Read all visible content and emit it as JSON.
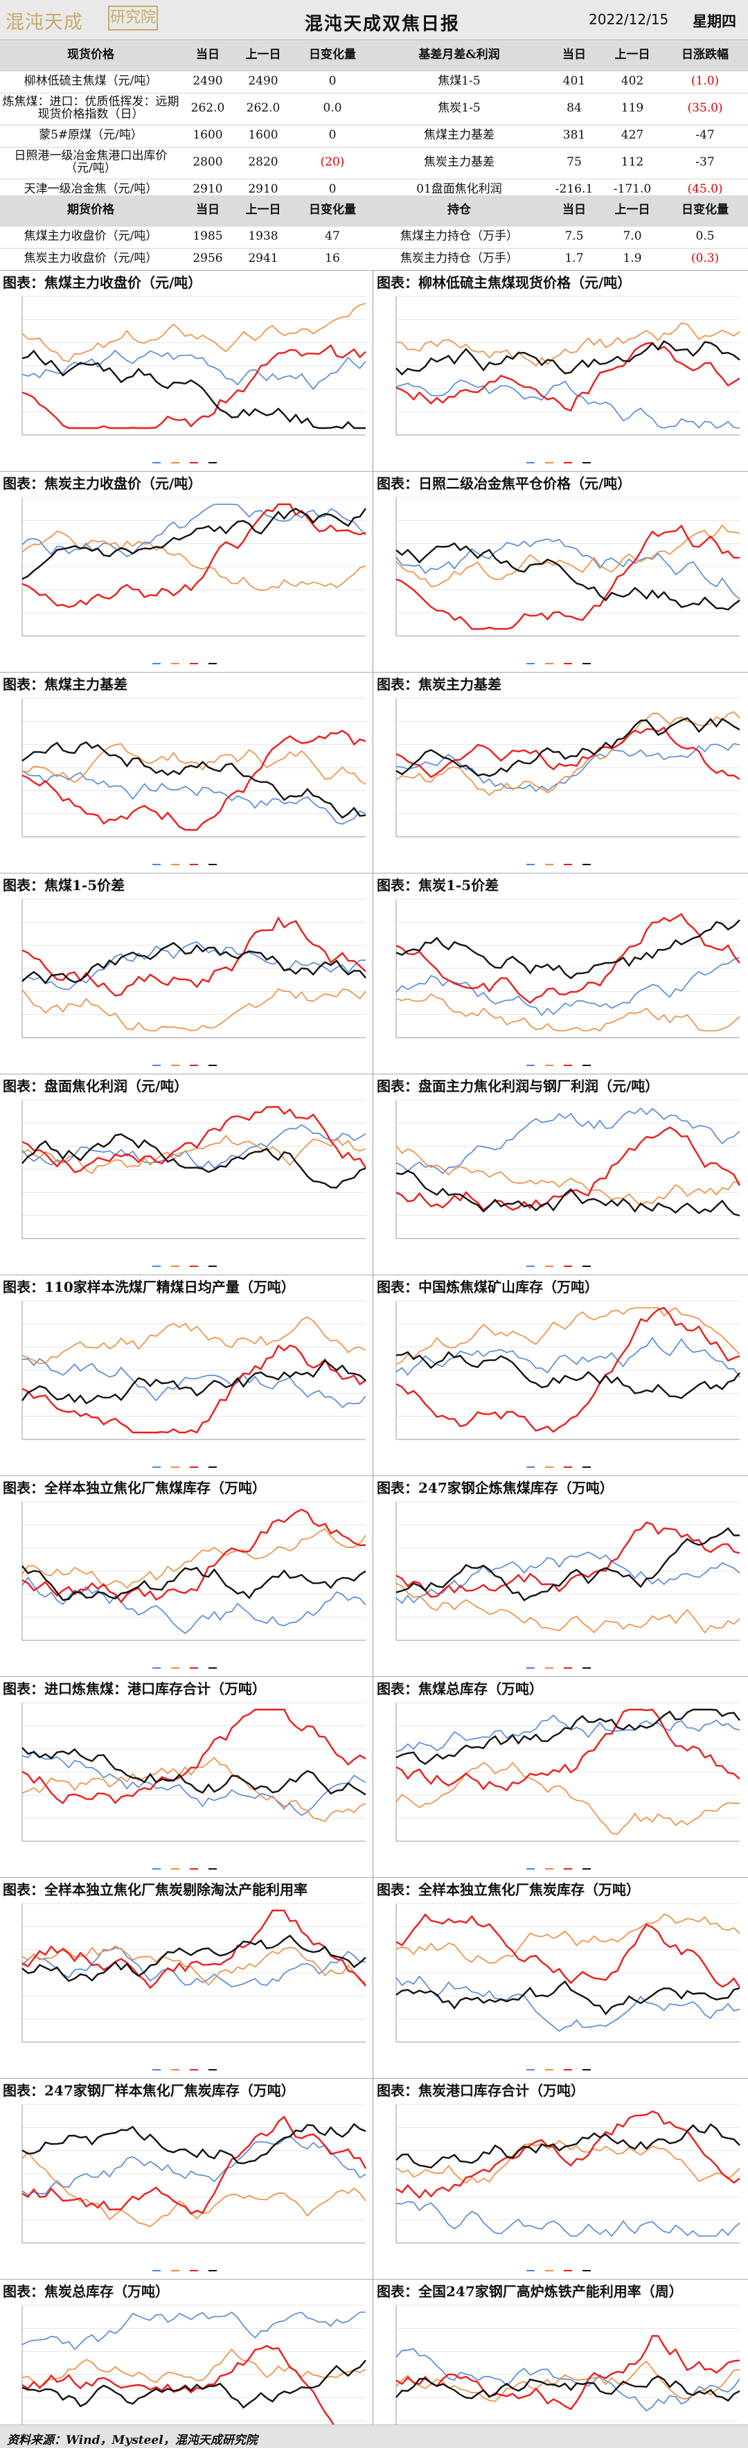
{
  "header": {
    "logo_text": "混沌天成",
    "logo_box": "研究院",
    "title": "混沌天成双焦日报",
    "date": "2022/12/15",
    "weekday": "星期四"
  },
  "spot_table": {
    "headers": [
      "现货价格",
      "当日",
      "上一日",
      "日变化量",
      "基差月差&利润",
      "当日",
      "上一日",
      "日涨跌幅"
    ],
    "rows": [
      [
        "柳林低硫主焦煤（元/吨）",
        "2490",
        "2490",
        "0",
        "焦煤1-5",
        "401",
        "402",
        "(1.0)"
      ],
      [
        "炼焦煤：进口：优质低挥发：远期现货价格指数（日）",
        "262.0",
        "262.0",
        "0.0",
        "焦炭1-5",
        "84",
        "119",
        "(35.0)"
      ],
      [
        "蒙5#原煤（元/吨）",
        "1600",
        "1600",
        "0",
        "焦煤主力基差",
        "381",
        "427",
        "-47"
      ],
      [
        "日照港一级冶金焦港口出库价（元/吨）",
        "2800",
        "2820",
        "(20)",
        "焦炭主力基差",
        "75",
        "112",
        "-37"
      ],
      [
        "天津一级冶金焦（元/吨）",
        "2910",
        "2910",
        "0",
        "01盘面焦化利润",
        "-216.1",
        "-171.0",
        "(45.0)"
      ]
    ]
  },
  "futures_table": {
    "headers": [
      "期货价格",
      "当日",
      "上一日",
      "日变化量",
      "持仓",
      "当日",
      "上一日",
      "日变化量"
    ],
    "rows": [
      [
        "焦煤主力收盘价（元/吨）",
        "1985",
        "1938",
        "47",
        "焦煤主力持仓（万手）",
        "7.5",
        "7.0",
        "0.5"
      ],
      [
        "焦炭主力收盘价（元/吨）",
        "2956",
        "2941",
        "16",
        "焦炭主力持仓（万手）",
        "1.7",
        "1.9",
        "(0.3)"
      ]
    ]
  },
  "colors": {
    "y2019": "#4f86d9",
    "y2020": "#f08a3a",
    "y2021": "#ee1c1c",
    "y2022": "#111111",
    "purple": "#7030a0",
    "negative": "#e00000"
  },
  "charts": [
    {
      "title": "图表：焦煤主力收盘价（元/吨）"
    },
    {
      "title": "图表：柳林低硫主焦煤现货价格（元/吨）"
    },
    {
      "title": "图表：焦炭主力收盘价（元/吨）"
    },
    {
      "title": "图表：日照二级冶金焦平仓价格（元/吨）"
    },
    {
      "title": "图表：焦煤主力基差"
    },
    {
      "title": "图表：焦炭主力基差"
    },
    {
      "title": "图表：焦煤1-5价差"
    },
    {
      "title": "图表：焦炭1-5价差"
    },
    {
      "title": "图表：盘面焦化利润（元/吨）"
    },
    {
      "title": "图表：盘面主力焦化利润与钢厂利润（元/吨）"
    },
    {
      "title": "图表：110家样本洗煤厂精煤日均产量（万吨）"
    },
    {
      "title": "图表：中国炼焦煤矿山库存（万吨）"
    },
    {
      "title": "图表：全样本独立焦化厂焦煤库存（万吨）"
    },
    {
      "title": "图表：247家钢企炼焦煤库存（万吨）"
    },
    {
      "title": "图表：进口炼焦煤：港口库存合计（万吨）"
    },
    {
      "title": "图表：焦煤总库存（万吨）"
    },
    {
      "title": "图表：全样本独立焦化厂焦炭剔除淘汰产能利用率"
    },
    {
      "title": "图表：全样本独立焦化厂焦炭库存（万吨）"
    },
    {
      "title": "图表：247家钢厂样本焦化厂焦炭库存（万吨）"
    },
    {
      "title": "图表：焦炭港口库存合计（万吨）"
    },
    {
      "title": "图表：焦炭总库存（万吨）"
    },
    {
      "title": "图表：全国247家钢厂高炉炼铁产能利用率（周）"
    }
  ],
  "footer": "资料来源：Wind，Mysteel，混沌天成研究院"
}
